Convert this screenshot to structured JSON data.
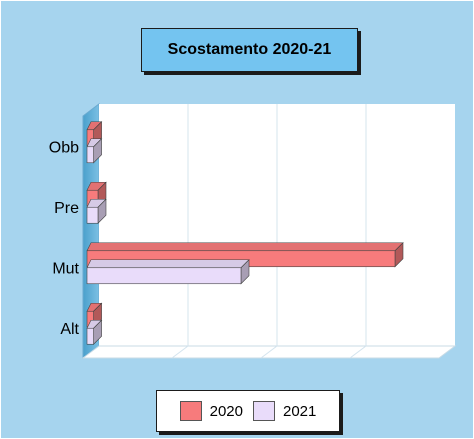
{
  "chart_data": {
    "type": "bar",
    "orientation": "horizontal",
    "title": "Scostamento 2020-21",
    "categories": [
      "Obb",
      "Pre",
      "Mut",
      "Alt"
    ],
    "series": [
      {
        "name": "2020",
        "values": [
          1.5,
          2.5,
          70,
          1.5
        ],
        "color": "#f77b7c"
      },
      {
        "name": "2021",
        "values": [
          1.5,
          2.5,
          35,
          1.5
        ],
        "color": "#e9dcfa"
      }
    ],
    "xlim": [
      0,
      80
    ],
    "grid": true,
    "legend": "bottom"
  }
}
